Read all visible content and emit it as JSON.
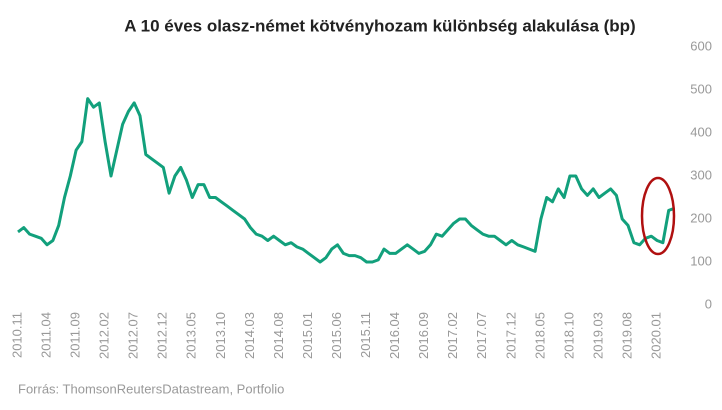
{
  "chart_data": {
    "type": "line",
    "title": "A 10 éves olasz-német kötvényhozam különbség alakulása (bp)",
    "source": "Forrás: ThomsonReutersDatastream, Portfolio",
    "x": [
      "2010.11",
      "2010.12",
      "2011.01",
      "2011.02",
      "2011.03",
      "2011.04",
      "2011.05",
      "2011.06",
      "2011.07",
      "2011.08",
      "2011.09",
      "2011.10",
      "2011.11",
      "2011.12",
      "2012.01",
      "2012.02",
      "2012.03",
      "2012.04",
      "2012.05",
      "2012.06",
      "2012.07",
      "2012.08",
      "2012.09",
      "2012.10",
      "2012.11",
      "2012.12",
      "2013.01",
      "2013.02",
      "2013.03",
      "2013.04",
      "2013.05",
      "2013.06",
      "2013.07",
      "2013.08",
      "2013.09",
      "2013.10",
      "2013.11",
      "2013.12",
      "2014.01",
      "2014.02",
      "2014.03",
      "2014.04",
      "2014.05",
      "2014.06",
      "2014.07",
      "2014.08",
      "2014.09",
      "2014.10",
      "2014.11",
      "2014.12",
      "2015.01",
      "2015.02",
      "2015.03",
      "2015.04",
      "2015.05",
      "2015.06",
      "2015.07",
      "2015.08",
      "2015.09",
      "2015.10",
      "2015.11",
      "2015.12",
      "2016.01",
      "2016.02",
      "2016.03",
      "2016.04",
      "2016.05",
      "2016.06",
      "2016.07",
      "2016.08",
      "2016.09",
      "2016.10",
      "2016.11",
      "2016.12",
      "2017.01",
      "2017.02",
      "2017.03",
      "2017.04",
      "2017.05",
      "2017.06",
      "2017.07",
      "2017.08",
      "2017.09",
      "2017.10",
      "2017.11",
      "2017.12",
      "2018.01",
      "2018.02",
      "2018.03",
      "2018.04",
      "2018.05",
      "2018.06",
      "2018.07",
      "2018.08",
      "2018.09",
      "2018.10",
      "2018.11",
      "2018.12",
      "2019.01",
      "2019.02",
      "2019.03",
      "2019.04",
      "2019.05",
      "2019.06",
      "2019.07",
      "2019.08",
      "2019.09",
      "2019.10",
      "2019.11",
      "2019.12",
      "2020.01",
      "2020.02",
      "2020.03",
      "2020.04"
    ],
    "values": [
      170,
      180,
      165,
      160,
      155,
      140,
      150,
      185,
      250,
      300,
      360,
      380,
      480,
      460,
      470,
      380,
      300,
      360,
      420,
      450,
      470,
      440,
      350,
      340,
      330,
      320,
      260,
      300,
      320,
      290,
      250,
      280,
      280,
      250,
      250,
      240,
      230,
      220,
      210,
      200,
      180,
      165,
      160,
      150,
      160,
      150,
      140,
      145,
      135,
      130,
      120,
      110,
      100,
      110,
      130,
      140,
      120,
      115,
      115,
      110,
      100,
      100,
      105,
      130,
      120,
      120,
      130,
      140,
      130,
      120,
      125,
      140,
      165,
      160,
      175,
      190,
      200,
      200,
      185,
      175,
      165,
      160,
      160,
      150,
      140,
      150,
      140,
      135,
      130,
      125,
      200,
      250,
      240,
      270,
      250,
      300,
      300,
      270,
      255,
      270,
      250,
      260,
      270,
      255,
      200,
      185,
      145,
      140,
      155,
      160,
      150,
      145,
      220,
      225
    ],
    "color": "#12a07c",
    "xticks": [
      "2010.11",
      "2011.04",
      "2011.09",
      "2012.02",
      "2012.07",
      "2012.12",
      "2013.05",
      "2013.10",
      "2014.03",
      "2014.08",
      "2015.01",
      "2015.06",
      "2015.11",
      "2016.04",
      "2016.09",
      "2017.02",
      "2017.07",
      "2017.12",
      "2018.05",
      "2018.10",
      "2019.03",
      "2019.08",
      "2020.01"
    ],
    "ylim": [
      0,
      600
    ],
    "yticks": [
      0,
      100,
      200,
      300,
      400,
      500,
      600
    ],
    "grid": false
  }
}
